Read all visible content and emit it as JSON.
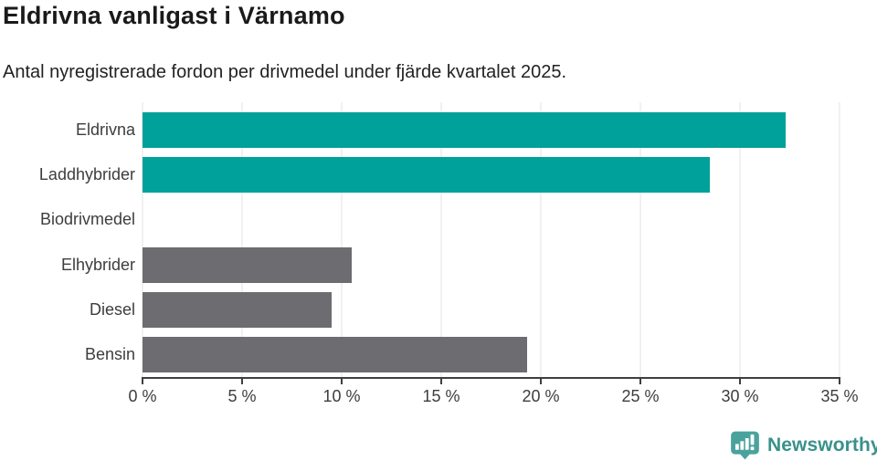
{
  "chart": {
    "title": "Eldrivna vanligast i Värnamo",
    "subtitle": "Antal nyregistrerade fordon per drivmedel under fjärde kvartalet 2025."
  },
  "chart_data": {
    "type": "bar",
    "orientation": "horizontal",
    "title": "Eldrivna vanligast i Värnamo",
    "subtitle": "Antal nyregistrerade fordon per drivmedel under fjärde kvartalet 2025.",
    "categories": [
      "Eldrivna",
      "Laddhybrider",
      "Biodrivmedel",
      "Elhybrider",
      "Diesel",
      "Bensin"
    ],
    "values": [
      32.3,
      28.5,
      0,
      10.5,
      9.5,
      19.3
    ],
    "unit": "%",
    "bar_color_keys": [
      "highlight",
      "highlight",
      "default",
      "default",
      "default",
      "default"
    ],
    "colors": {
      "highlight": "#00a19a",
      "default": "#6c6c71"
    },
    "xlabel": "",
    "ylabel": "",
    "xlim": [
      0,
      35
    ],
    "x_ticks": [
      {
        "value": 0,
        "label": "0 %"
      },
      {
        "value": 5,
        "label": "5 %"
      },
      {
        "value": 10,
        "label": "10 %"
      },
      {
        "value": 15,
        "label": "15 %"
      },
      {
        "value": 20,
        "label": "20 %"
      },
      {
        "value": 25,
        "label": "25 %"
      },
      {
        "value": 30,
        "label": "30 %"
      },
      {
        "value": 35,
        "label": "35 %"
      }
    ],
    "grid": true,
    "legend": "none"
  },
  "footer": {
    "brand": "Newsworthy",
    "logo_icon": "newsworthy-bar-chart-speech-bubble",
    "logo_color": "#4aa29d",
    "text_color": "#38918c"
  }
}
